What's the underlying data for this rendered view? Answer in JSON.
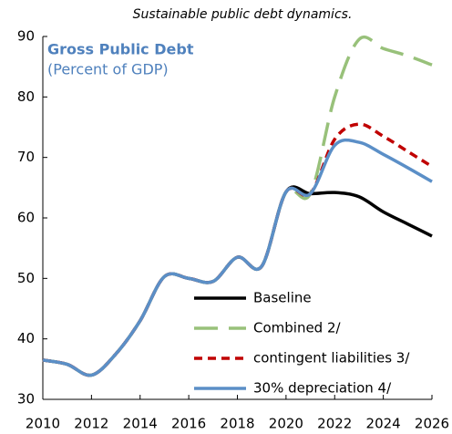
{
  "chart_data": {
    "type": "line",
    "title": "Sustainable public debt dynamics.",
    "annotations": [
      "Gross Public Debt",
      "(Percent of GDP)"
    ],
    "x": [
      2010,
      2011,
      2012,
      2013,
      2014,
      2015,
      2016,
      2017,
      2018,
      2019,
      2020,
      2021,
      2022,
      2023,
      2024,
      2025,
      2026
    ],
    "series": [
      {
        "name": "Baseline",
        "color": "#000000",
        "dash": "solid",
        "values": [
          36.5,
          35.8,
          34,
          37.5,
          43,
          50.3,
          50,
          49.5,
          53.5,
          52,
          64.3,
          64,
          64.2,
          63.5,
          61,
          59,
          57
        ]
      },
      {
        "name": "Combined 2/",
        "color": "#98c17a",
        "dash": "long",
        "values": [
          36.5,
          35.8,
          34,
          37.5,
          43,
          50.3,
          50,
          49.5,
          53.5,
          52,
          64.3,
          64,
          80,
          89.5,
          88,
          86.8,
          85.3
        ]
      },
      {
        "name": "contingent liabilities 3/",
        "color": "#c00000",
        "dash": "short",
        "values": [
          36.5,
          35.8,
          34,
          37.5,
          43,
          50.3,
          50,
          49.5,
          53.5,
          52,
          64.3,
          64,
          73,
          75.5,
          73.5,
          71,
          68.5
        ]
      },
      {
        "name": "30% depreciation 4/",
        "color": "#5b8fc7",
        "dash": "solid",
        "values": [
          36.5,
          35.8,
          34,
          37.5,
          43,
          50.3,
          50,
          49.5,
          53.5,
          52,
          64.3,
          64,
          72,
          72.5,
          70.5,
          68.3,
          66
        ]
      }
    ],
    "xlim": [
      2010,
      2026
    ],
    "xticks": [
      2010,
      2012,
      2014,
      2016,
      2018,
      2020,
      2022,
      2024,
      2026
    ],
    "ylim": [
      30,
      90
    ],
    "yticks": [
      30,
      40,
      50,
      60,
      70,
      80,
      90
    ],
    "grid": false,
    "legend": "lower right"
  }
}
